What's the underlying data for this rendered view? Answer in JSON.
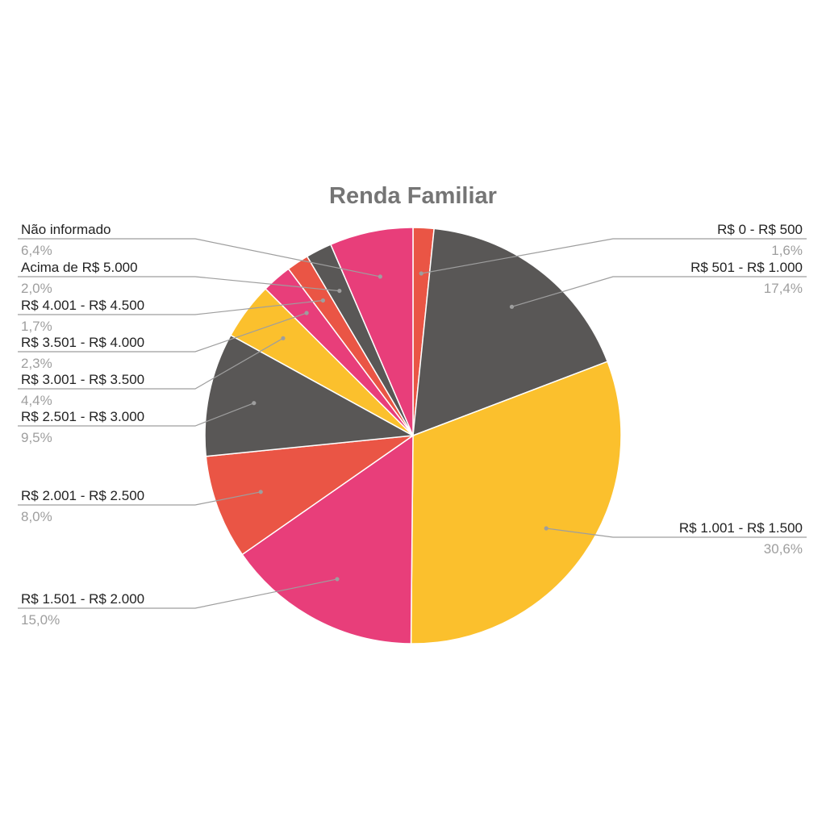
{
  "chart_data": {
    "type": "pie",
    "title": "Renda Familiar",
    "start_angle_deg": 0,
    "direction": "clockwise",
    "slices": [
      {
        "label": "R$ 0 - R$ 500",
        "value": 1.6,
        "percent_text": "1,6%",
        "color": "#ea5545",
        "side": "right"
      },
      {
        "label": "R$ 501 - R$ 1.000",
        "value": 17.4,
        "percent_text": "17,4%",
        "color": "#595756",
        "side": "right"
      },
      {
        "label": "R$ 1.001 - R$ 1.500",
        "value": 30.6,
        "percent_text": "30,6%",
        "color": "#fbc02d",
        "side": "right"
      },
      {
        "label": "R$ 1.501 - R$ 2.000",
        "value": 15.0,
        "percent_text": "15,0%",
        "color": "#e83e7a",
        "side": "left"
      },
      {
        "label": "R$ 2.001 - R$ 2.500",
        "value": 8.0,
        "percent_text": "8,0%",
        "color": "#ea5545",
        "side": "left"
      },
      {
        "label": "R$ 2.501 - R$ 3.000",
        "value": 9.5,
        "percent_text": "9,5%",
        "color": "#595756",
        "side": "left"
      },
      {
        "label": "R$ 3.001 - R$ 3.500",
        "value": 4.4,
        "percent_text": "4,4%",
        "color": "#fbc02d",
        "side": "left"
      },
      {
        "label": "R$ 3.501 - R$ 4.000",
        "value": 2.3,
        "percent_text": "2,3%",
        "color": "#e83e7a",
        "side": "left"
      },
      {
        "label": "R$ 4.001 - R$ 4.500",
        "value": 1.7,
        "percent_text": "1,7%",
        "color": "#ea5545",
        "side": "left"
      },
      {
        "label": "Acima de R$ 5.000",
        "value": 2.0,
        "percent_text": "2,0%",
        "color": "#595756",
        "side": "left"
      },
      {
        "label": "Não informado",
        "value": 6.4,
        "percent_text": "6,4%",
        "color": "#e83e7a",
        "side": "left"
      }
    ],
    "legend": "none"
  }
}
